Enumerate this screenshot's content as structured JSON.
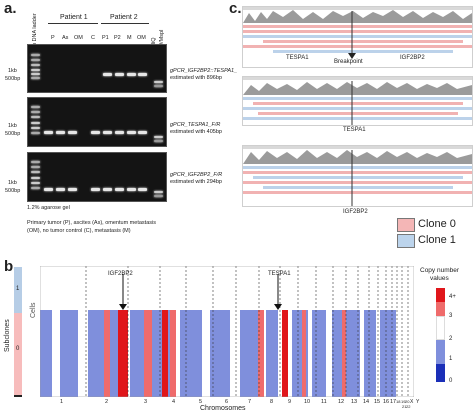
{
  "panel_a": {
    "letter": "a.",
    "patient1": "Patient 1",
    "patient2": "Patient 2",
    "ladder_label": "Hb DNA ladder",
    "lanes": [
      "P",
      "As",
      "OM",
      "C",
      "P1",
      "P2",
      "M",
      "OM"
    ],
    "side_lanes": [
      "miliQ",
      "pUC19/MspI"
    ],
    "marker_1kb": "1kb",
    "marker_500bp": "500bp",
    "gel_labels": [
      {
        "line1": "gPCR_IGF2BP2::TESPA1_",
        "line2": "estimated with 896bp"
      },
      {
        "line1": "gPCR_TESPA1_F/R",
        "line2": "estimated with 405bp"
      },
      {
        "line1": "gPCR_IGF2BP2_F/R",
        "line2": "estimated with 294bp"
      }
    ],
    "gel_note": "1.2% agarose gel",
    "caption_line1": "Primary tumor (P), ascites (As), omentum metastasis",
    "caption_line2": "(OM), no tumor control (C), metastasis (M)"
  },
  "panel_c": {
    "letter": "c.",
    "top_gene_left": "TESPA1",
    "breakpoint_label": "Breakpoint",
    "top_gene_right": "IGF2BP2",
    "middle_gene": "TESPA1",
    "bottom_gene": "IGF2BP2",
    "legend": [
      {
        "label": "Clone 0",
        "color": "#f4b6b6"
      },
      {
        "label": "Clone 1",
        "color": "#bcd4ec"
      }
    ]
  },
  "panel_b": {
    "letter": "b.",
    "ylabel_outer": "Subclones",
    "ylabel_inner": "Cells",
    "subclone_1": "1",
    "subclone_0": "0",
    "annotation_igf2bp2": "IGF2BP2",
    "annotation_tespa1": "TESPA1",
    "xlabel": "Chromosomes",
    "chromosomes": [
      "1",
      "2",
      "3",
      "4",
      "5",
      "6",
      "7",
      "8",
      "9",
      "10",
      "11",
      "12",
      "13",
      "14",
      "15",
      "16",
      "17",
      "18",
      "19",
      "20",
      "21",
      "22",
      "X",
      "Y"
    ],
    "legend_title_1": "Copy number",
    "legend_title_2": "values",
    "legend_ticks": [
      "4+",
      "3",
      "2",
      "1",
      "0"
    ],
    "colors": {
      "amp_high": "#e0161b",
      "amp": "#ef6b6b",
      "neutral": "#ffffff",
      "loss": "#7f8fdc",
      "loss_deep": "#1b2fb8",
      "clone0": "#f7bcbc",
      "clone1": "#b6cde6"
    }
  }
}
